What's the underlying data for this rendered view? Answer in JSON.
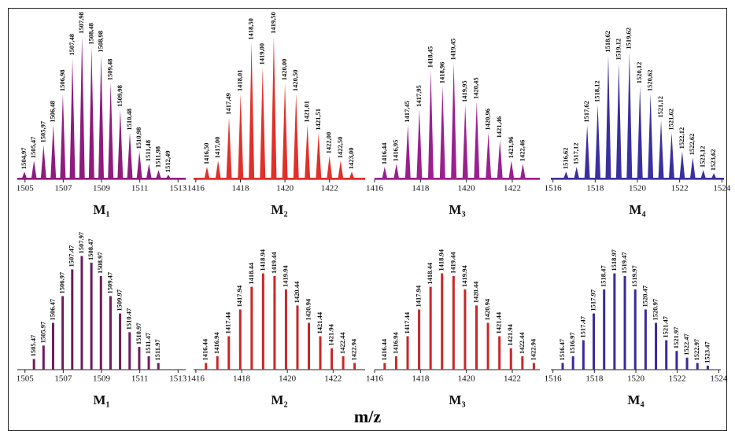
{
  "axis_label": "m/z",
  "chart_data": [
    {
      "type": "profile",
      "title": "M₁",
      "color": "#8e1b7e",
      "xlim": [
        1504.6,
        1513.4
      ],
      "xticks": [
        1505,
        1507,
        1509,
        1511,
        1513
      ],
      "ylim": [
        0,
        100
      ],
      "x": [
        1504.97,
        1505.47,
        1505.97,
        1506.48,
        1506.98,
        1507.48,
        1507.98,
        1508.48,
        1508.98,
        1509.48,
        1509.98,
        1510.48,
        1510.98,
        1511.48,
        1511.98,
        1512.49
      ],
      "peak_labels": [
        "1504,97",
        "1505,47",
        "1505,97",
        "1506,48",
        "1506,98",
        "1507,48",
        "1507,98",
        "1508,48",
        "1508,98",
        "1509,48",
        "1509,98",
        "1510,48",
        "1510,98",
        "1511,48",
        "1511,98",
        "1512,49"
      ],
      "values": [
        5,
        12,
        22,
        35,
        55,
        78,
        92,
        85,
        80,
        62,
        45,
        30,
        18,
        10,
        6,
        3
      ]
    },
    {
      "type": "profile",
      "title": "M₂",
      "color": "#e0302a",
      "xlim": [
        1415.9,
        1423.6
      ],
      "xticks": [
        1416,
        1418,
        1420,
        1422
      ],
      "ylim": [
        0,
        100
      ],
      "x": [
        1416.5,
        1417.0,
        1417.49,
        1418.01,
        1418.5,
        1419.0,
        1419.5,
        1420.0,
        1420.5,
        1421.01,
        1421.51,
        1422.0,
        1422.5,
        1423.0
      ],
      "peak_labels": [
        "1416,50",
        "1417,00",
        "1417,49",
        "1418,01",
        "1418,50",
        "1419,00",
        "1419,50",
        "1420,00",
        "1420,50",
        "1421,01",
        "1421,51",
        "1422,00",
        "1422,50",
        "1423,00"
      ],
      "values": [
        8,
        12,
        40,
        55,
        88,
        72,
        92,
        62,
        55,
        35,
        30,
        15,
        12,
        5
      ]
    },
    {
      "type": "profile",
      "title": "M₃",
      "color": "#9b1f8f",
      "xlim": [
        1416,
        1423.2
      ],
      "xticks": [
        1416,
        1418,
        1420,
        1422
      ],
      "ylim": [
        0,
        100
      ],
      "x": [
        1416.44,
        1416.95,
        1417.45,
        1417.95,
        1418.45,
        1418.96,
        1419.45,
        1419.95,
        1420.45,
        1420.96,
        1421.46,
        1421.96,
        1422.46
      ],
      "peak_labels": [
        "1416,44",
        "1416,95",
        "1417,45",
        "1417,95",
        "1418,45",
        "1418,96",
        "1419,45",
        "1419,95",
        "1420,45",
        "1420,96",
        "1421,46",
        "1421,96",
        "1422,46"
      ],
      "values": [
        8,
        10,
        35,
        45,
        70,
        60,
        75,
        48,
        50,
        30,
        25,
        12,
        10
      ]
    },
    {
      "type": "profile",
      "title": "M₄",
      "color": "#3b2fa0",
      "xlim": [
        1515.9,
        1524.1
      ],
      "xticks": [
        1516,
        1518,
        1520,
        1522,
        1524
      ],
      "ylim": [
        0,
        100
      ],
      "x": [
        1516.62,
        1517.12,
        1517.62,
        1518.12,
        1518.62,
        1519.12,
        1519.62,
        1520.12,
        1520.62,
        1521.12,
        1521.62,
        1522.12,
        1522.62,
        1523.12,
        1523.62
      ],
      "peak_labels": [
        "1516,62",
        "1517,12",
        "1517,62",
        "1518,12",
        "1518,62",
        "1519,12",
        "1519,62",
        "1520,12",
        "1520,62",
        "1521,12",
        "1521,62",
        "1522,12",
        "1522,62",
        "1523,12",
        "1523,62"
      ],
      "values": [
        5,
        8,
        35,
        48,
        80,
        75,
        82,
        60,
        55,
        38,
        30,
        18,
        14,
        6,
        4
      ]
    },
    {
      "type": "stick",
      "title": "M₁",
      "color": "#6e1c5e",
      "xlim": [
        1504.6,
        1513.4
      ],
      "xticks": [
        1505,
        1507,
        1509,
        1511,
        1513
      ],
      "ylim": [
        0,
        100
      ],
      "x": [
        1505.47,
        1505.97,
        1506.47,
        1506.97,
        1507.47,
        1507.97,
        1508.47,
        1508.97,
        1509.47,
        1509.97,
        1510.47,
        1510.97,
        1511.47,
        1511.97
      ],
      "peak_labels": [
        "1505.47",
        "1505.97",
        "1506.47",
        "1506.97",
        "1507.47",
        "1507.97",
        "1508.47",
        "1508.97",
        "1509.47",
        "1509.97",
        "1510.47",
        "1510.97",
        "1511.47",
        "1511.97"
      ],
      "values": [
        8,
        18,
        35,
        55,
        75,
        85,
        80,
        70,
        55,
        42,
        28,
        17,
        10,
        5
      ]
    },
    {
      "type": "stick",
      "title": "M₂",
      "color": "#c62828",
      "xlim": [
        1415.9,
        1423.4
      ],
      "xticks": [
        1416,
        1418,
        1420,
        1422
      ],
      "ylim": [
        0,
        100
      ],
      "x": [
        1416.44,
        1416.94,
        1417.44,
        1417.94,
        1418.44,
        1418.94,
        1419.44,
        1419.94,
        1420.44,
        1420.94,
        1421.44,
        1421.94,
        1422.44,
        1422.94
      ],
      "peak_labels": [
        "1416.44",
        "1416.94",
        "1417.44",
        "1417.94",
        "1418.44",
        "1418.94",
        "1419.44",
        "1419.94",
        "1420.44",
        "1420.94",
        "1421.44",
        "1421.94",
        "1422.44",
        "1422.94"
      ],
      "values": [
        5,
        10,
        25,
        45,
        62,
        72,
        70,
        60,
        48,
        35,
        25,
        16,
        10,
        5
      ]
    },
    {
      "type": "stick",
      "title": "M₃",
      "color": "#c62828",
      "xlim": [
        1416,
        1423.2
      ],
      "xticks": [
        1416,
        1418,
        1420,
        1422
      ],
      "ylim": [
        0,
        100
      ],
      "x": [
        1416.44,
        1416.94,
        1417.44,
        1417.94,
        1418.44,
        1418.94,
        1419.44,
        1419.94,
        1420.44,
        1420.94,
        1421.44,
        1421.94,
        1422.44,
        1422.94
      ],
      "peak_labels": [
        "1416.44",
        "1416.94",
        "1417.44",
        "1417.94",
        "1418.44",
        "1418.94",
        "1419.44",
        "1419.94",
        "1420.44",
        "1420.94",
        "1421.44",
        "1421.94",
        "1422.44",
        "1422.94"
      ],
      "values": [
        5,
        10,
        25,
        45,
        62,
        72,
        70,
        60,
        48,
        35,
        25,
        16,
        10,
        5
      ]
    },
    {
      "type": "stick",
      "title": "M₄",
      "color": "#3a2a9a",
      "xlim": [
        1515.9,
        1524.1
      ],
      "xticks": [
        1516,
        1518,
        1520,
        1522,
        1524
      ],
      "ylim": [
        0,
        100
      ],
      "x": [
        1516.47,
        1516.97,
        1517.47,
        1517.97,
        1518.47,
        1518.97,
        1519.47,
        1519.97,
        1520.47,
        1520.97,
        1521.47,
        1521.97,
        1522.47,
        1522.97,
        1523.47
      ],
      "peak_labels": [
        "1516.47",
        "1516.97",
        "1517.47",
        "1517.97",
        "1518.47",
        "1518.97",
        "1519.47",
        "1519.97",
        "1520.47",
        "1520.97",
        "1521.47",
        "1521.97",
        "1522.47",
        "1522.97",
        "1523.47"
      ],
      "values": [
        5,
        10,
        22,
        42,
        60,
        72,
        70,
        60,
        45,
        35,
        22,
        14,
        9,
        5,
        3
      ]
    }
  ]
}
